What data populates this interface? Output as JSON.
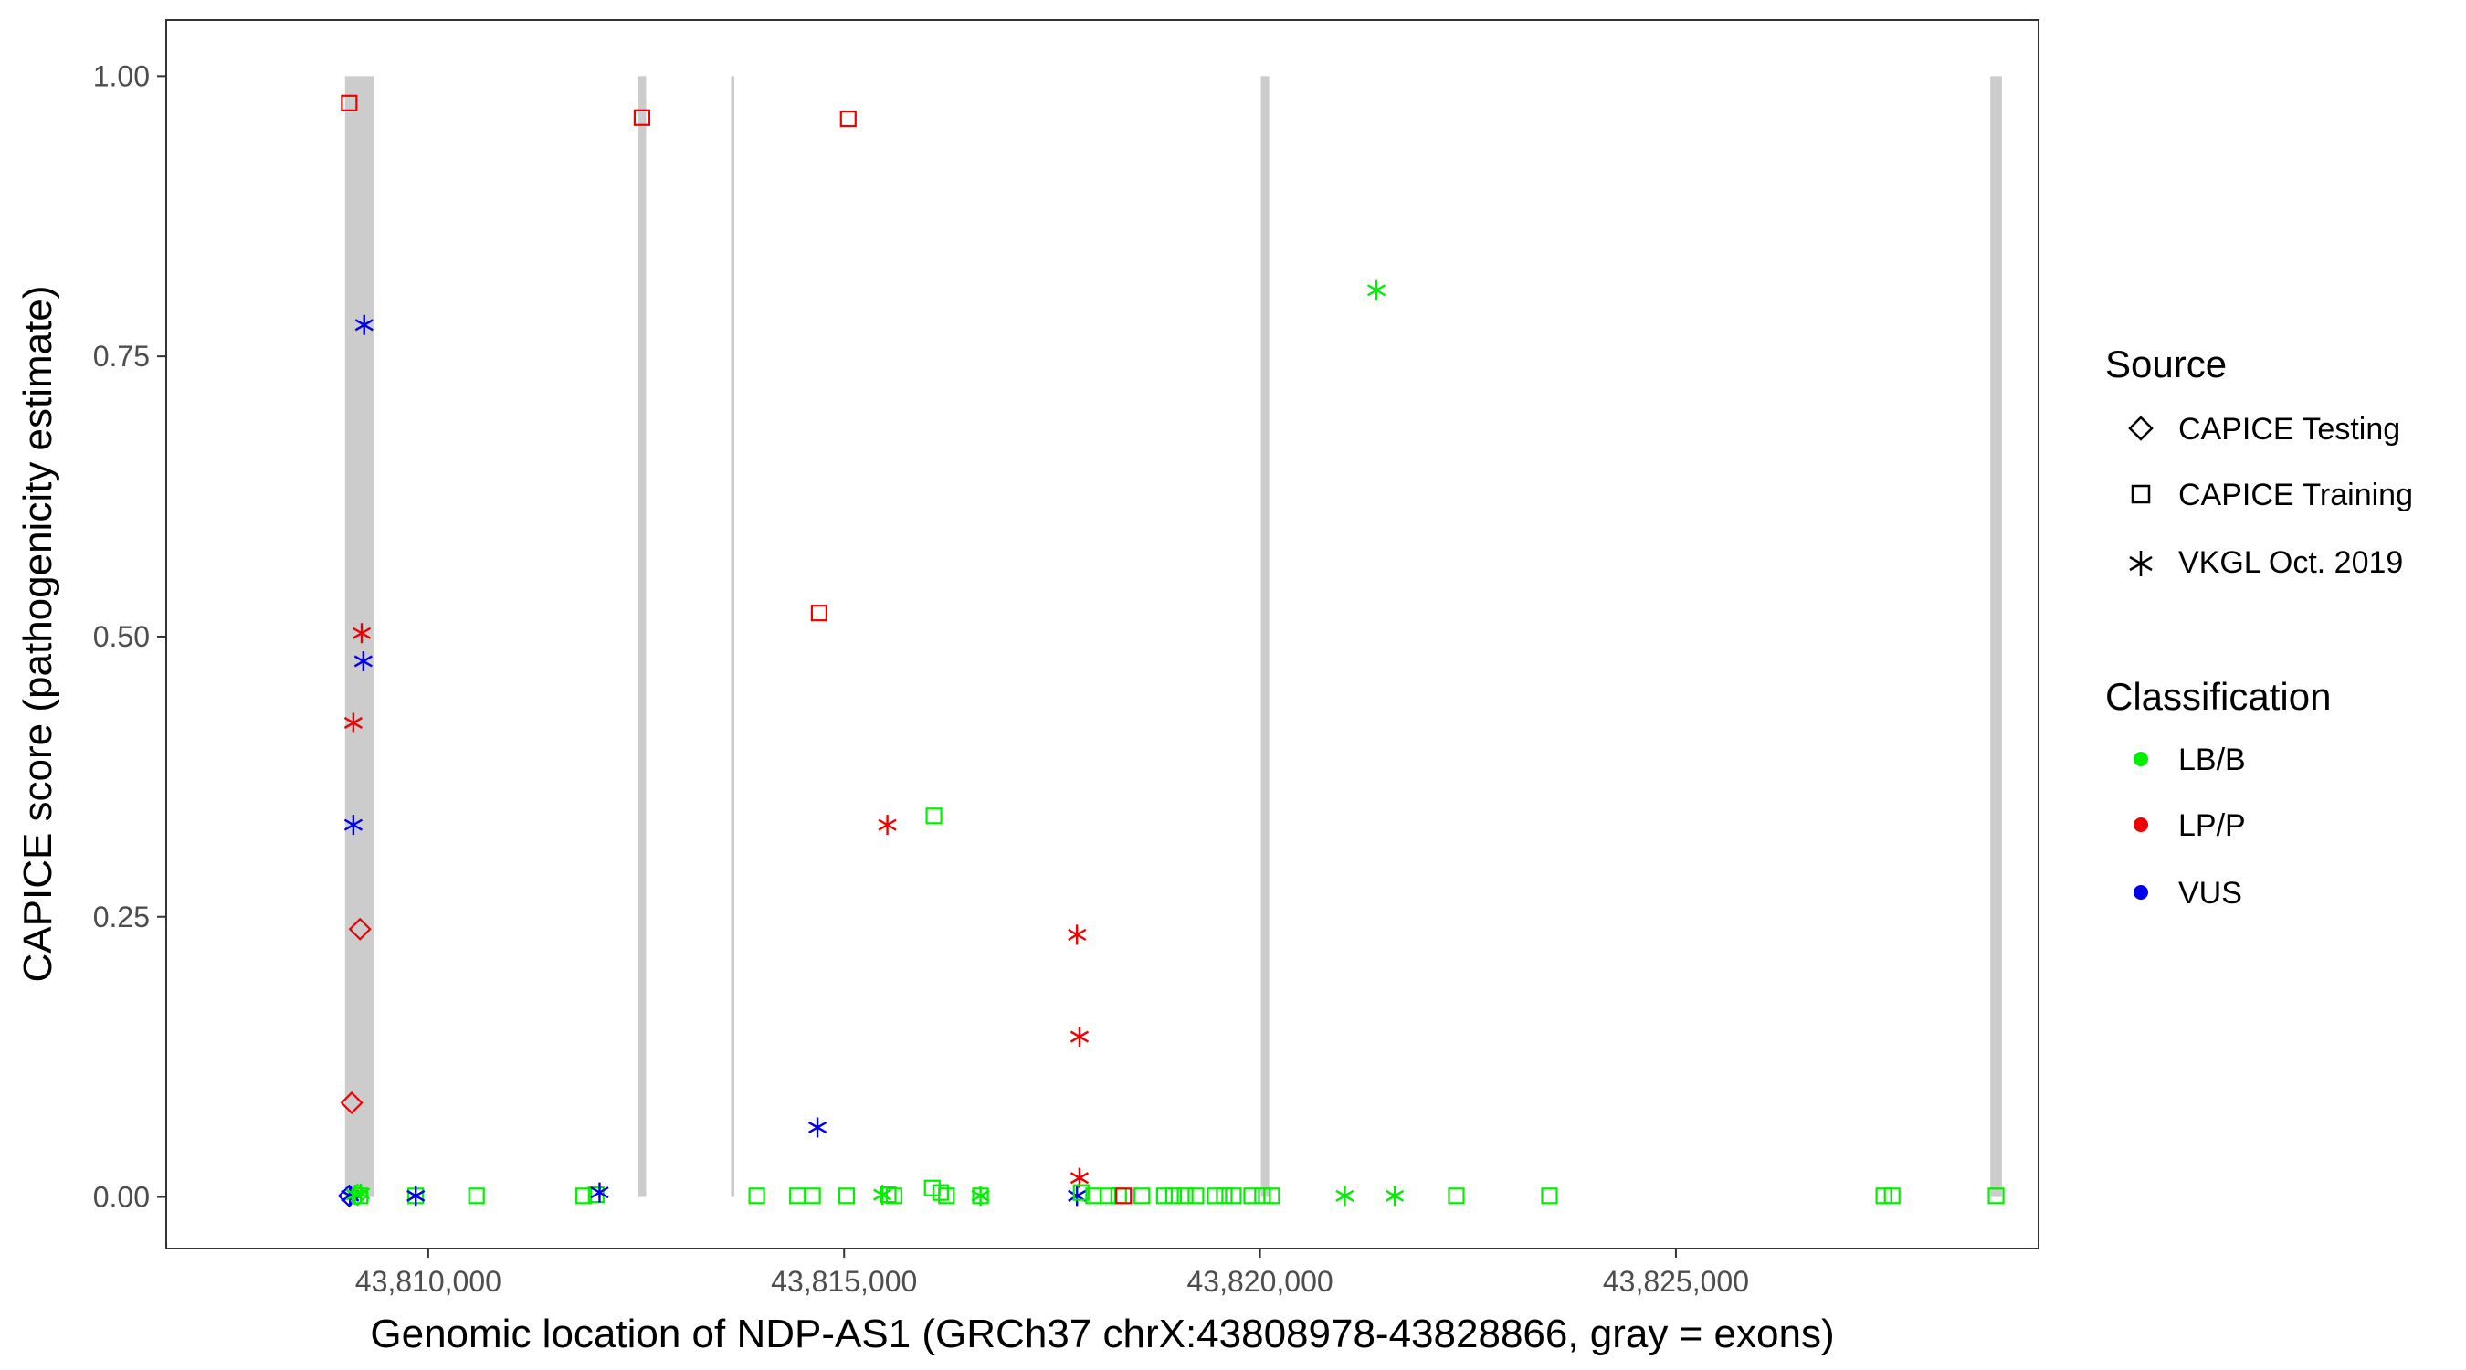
{
  "chart_data": {
    "type": "scatter",
    "xlabel": "Genomic location of NDP-AS1 (GRCh37 chrX:43808978-43828866, gray = exons)",
    "ylabel": "CAPICE score (pathogenicity estimate)",
    "xlim": [
      43806850,
      43829360
    ],
    "ylim": [
      -0.046,
      1.05
    ],
    "x_ticks": [
      43810000,
      43815000,
      43820000,
      43825000
    ],
    "x_tick_labels": [
      "43,810,000",
      "43,815,000",
      "43,820,000",
      "43,825,000"
    ],
    "y_ticks": [
      0,
      0.25,
      0.5,
      0.75,
      1.0
    ],
    "y_tick_labels": [
      "0.00",
      "0.25",
      "0.50",
      "0.75",
      "1.00"
    ],
    "grid": false,
    "exons": [
      {
        "start": 43809000,
        "end": 43809350
      },
      {
        "start": 43812520,
        "end": 43812620
      },
      {
        "start": 43813640,
        "end": 43813680
      },
      {
        "start": 43820010,
        "end": 43820110
      },
      {
        "start": 43828780,
        "end": 43828920
      }
    ],
    "legend_placement": "right",
    "legend": {
      "source": {
        "title": "Source",
        "items": [
          {
            "label": "CAPICE Testing",
            "shape": "diamond"
          },
          {
            "label": "CAPICE Training",
            "shape": "square"
          },
          {
            "label": "VKGL Oct. 2019",
            "shape": "star"
          }
        ]
      },
      "classification": {
        "title": "Classification",
        "items": [
          {
            "label": "LB/B",
            "color": "#00ee00"
          },
          {
            "label": "LP/P",
            "color": "#ee0000"
          },
          {
            "label": "VUS",
            "color": "#0000ee"
          }
        ]
      }
    },
    "colors": {
      "LB/B": "#00ee00",
      "LP/P": "#ee0000",
      "VUS": "#0000ee",
      "exon": "#cccccc"
    },
    "points": [
      {
        "x": 43809050,
        "y": 0.976,
        "source": "CAPICE Training",
        "class": "LP/P"
      },
      {
        "x": 43812570,
        "y": 0.963,
        "source": "CAPICE Training",
        "class": "LP/P"
      },
      {
        "x": 43815050,
        "y": 0.962,
        "source": "CAPICE Training",
        "class": "LP/P"
      },
      {
        "x": 43814700,
        "y": 0.521,
        "source": "CAPICE Training",
        "class": "LP/P"
      },
      {
        "x": 43809230,
        "y": 0.778,
        "source": "VKGL Oct. 2019",
        "class": "VUS"
      },
      {
        "x": 43809200,
        "y": 0.503,
        "source": "VKGL Oct. 2019",
        "class": "LP/P"
      },
      {
        "x": 43809220,
        "y": 0.478,
        "source": "VKGL Oct. 2019",
        "class": "VUS"
      },
      {
        "x": 43809100,
        "y": 0.423,
        "source": "VKGL Oct. 2019",
        "class": "LP/P"
      },
      {
        "x": 43809100,
        "y": 0.332,
        "source": "VKGL Oct. 2019",
        "class": "VUS"
      },
      {
        "x": 43809180,
        "y": 0.239,
        "source": "CAPICE Testing",
        "class": "LP/P"
      },
      {
        "x": 43809080,
        "y": 0.084,
        "source": "CAPICE Testing",
        "class": "LP/P"
      },
      {
        "x": 43815520,
        "y": 0.332,
        "source": "VKGL Oct. 2019",
        "class": "LP/P"
      },
      {
        "x": 43816080,
        "y": 0.34,
        "source": "CAPICE Training",
        "class": "LB/B"
      },
      {
        "x": 43821400,
        "y": 0.809,
        "source": "VKGL Oct. 2019",
        "class": "LB/B"
      },
      {
        "x": 43817800,
        "y": 0.234,
        "source": "VKGL Oct. 2019",
        "class": "LP/P"
      },
      {
        "x": 43817830,
        "y": 0.143,
        "source": "VKGL Oct. 2019",
        "class": "LP/P"
      },
      {
        "x": 43814680,
        "y": 0.062,
        "source": "VKGL Oct. 2019",
        "class": "VUS"
      },
      {
        "x": 43817830,
        "y": 0.017,
        "source": "VKGL Oct. 2019",
        "class": "LP/P"
      },
      {
        "x": 43809050,
        "y": 0.001,
        "source": "CAPICE Testing",
        "class": "VUS"
      },
      {
        "x": 43809150,
        "y": 0.002,
        "source": "CAPICE Testing",
        "class": "LB/B"
      },
      {
        "x": 43809060,
        "y": 0.001,
        "source": "VKGL Oct. 2019",
        "class": "VUS"
      },
      {
        "x": 43809120,
        "y": 0.002,
        "source": "VKGL Oct. 2019",
        "class": "LB/B"
      },
      {
        "x": 43809190,
        "y": 0.003,
        "source": "VKGL Oct. 2019",
        "class": "LB/B"
      },
      {
        "x": 43809180,
        "y": 0.001,
        "source": "CAPICE Training",
        "class": "LB/B"
      },
      {
        "x": 43809850,
        "y": 0.001,
        "source": "CAPICE Training",
        "class": "LB/B"
      },
      {
        "x": 43809850,
        "y": 0.001,
        "source": "VKGL Oct. 2019",
        "class": "VUS"
      },
      {
        "x": 43810580,
        "y": 0.001,
        "source": "CAPICE Training",
        "class": "LB/B"
      },
      {
        "x": 43811870,
        "y": 0.001,
        "source": "CAPICE Training",
        "class": "LB/B"
      },
      {
        "x": 43812020,
        "y": 0.002,
        "source": "CAPICE Training",
        "class": "LB/B"
      },
      {
        "x": 43812060,
        "y": 0.004,
        "source": "VKGL Oct. 2019",
        "class": "VUS"
      },
      {
        "x": 43813950,
        "y": 0.001,
        "source": "CAPICE Training",
        "class": "LB/B"
      },
      {
        "x": 43814440,
        "y": 0.001,
        "source": "CAPICE Training",
        "class": "LB/B"
      },
      {
        "x": 43814620,
        "y": 0.001,
        "source": "CAPICE Training",
        "class": "LB/B"
      },
      {
        "x": 43815030,
        "y": 0.001,
        "source": "CAPICE Training",
        "class": "LB/B"
      },
      {
        "x": 43815530,
        "y": 0.002,
        "source": "CAPICE Training",
        "class": "LB/B"
      },
      {
        "x": 43815460,
        "y": 0.002,
        "source": "VKGL Oct. 2019",
        "class": "LB/B"
      },
      {
        "x": 43815600,
        "y": 0.001,
        "source": "CAPICE Training",
        "class": "LB/B"
      },
      {
        "x": 43816060,
        "y": 0.008,
        "source": "CAPICE Training",
        "class": "LB/B"
      },
      {
        "x": 43816160,
        "y": 0.004,
        "source": "CAPICE Training",
        "class": "LB/B"
      },
      {
        "x": 43816230,
        "y": 0.001,
        "source": "CAPICE Training",
        "class": "LB/B"
      },
      {
        "x": 43816640,
        "y": 0.001,
        "source": "CAPICE Training",
        "class": "LB/B"
      },
      {
        "x": 43816640,
        "y": 0.001,
        "source": "VKGL Oct. 2019",
        "class": "LB/B"
      },
      {
        "x": 43817800,
        "y": 0.001,
        "source": "VKGL Oct. 2019",
        "class": "VUS"
      },
      {
        "x": 43817850,
        "y": 0.004,
        "source": "CAPICE Training",
        "class": "LB/B"
      },
      {
        "x": 43818000,
        "y": 0.001,
        "source": "CAPICE Training",
        "class": "LB/B"
      },
      {
        "x": 43818170,
        "y": 0.001,
        "source": "CAPICE Training",
        "class": "LB/B"
      },
      {
        "x": 43818300,
        "y": 0.001,
        "source": "CAPICE Training",
        "class": "LB/B"
      },
      {
        "x": 43818360,
        "y": 0.001,
        "source": "CAPICE Training",
        "class": "LP/P"
      },
      {
        "x": 43818580,
        "y": 0.001,
        "source": "CAPICE Training",
        "class": "LB/B"
      },
      {
        "x": 43818850,
        "y": 0.001,
        "source": "CAPICE Training",
        "class": "LB/B"
      },
      {
        "x": 43818960,
        "y": 0.001,
        "source": "CAPICE Training",
        "class": "LB/B"
      },
      {
        "x": 43819100,
        "y": 0.001,
        "source": "CAPICE Training",
        "class": "LB/B"
      },
      {
        "x": 43819230,
        "y": 0.001,
        "source": "CAPICE Training",
        "class": "LB/B"
      },
      {
        "x": 43819460,
        "y": 0.001,
        "source": "CAPICE Training",
        "class": "LB/B"
      },
      {
        "x": 43819570,
        "y": 0.001,
        "source": "CAPICE Training",
        "class": "LB/B"
      },
      {
        "x": 43819680,
        "y": 0.001,
        "source": "CAPICE Training",
        "class": "LB/B"
      },
      {
        "x": 43819900,
        "y": 0.001,
        "source": "CAPICE Training",
        "class": "LB/B"
      },
      {
        "x": 43820030,
        "y": 0.001,
        "source": "CAPICE Training",
        "class": "LB/B"
      },
      {
        "x": 43820140,
        "y": 0.001,
        "source": "CAPICE Training",
        "class": "LB/B"
      },
      {
        "x": 43821020,
        "y": 0.001,
        "source": "VKGL Oct. 2019",
        "class": "LB/B"
      },
      {
        "x": 43821620,
        "y": 0.001,
        "source": "VKGL Oct. 2019",
        "class": "LB/B"
      },
      {
        "x": 43822360,
        "y": 0.001,
        "source": "CAPICE Training",
        "class": "LB/B"
      },
      {
        "x": 43823480,
        "y": 0.001,
        "source": "CAPICE Training",
        "class": "LB/B"
      },
      {
        "x": 43827500,
        "y": 0.001,
        "source": "CAPICE Training",
        "class": "LB/B"
      },
      {
        "x": 43827600,
        "y": 0.001,
        "source": "CAPICE Training",
        "class": "LB/B"
      },
      {
        "x": 43828850,
        "y": 0.001,
        "source": "CAPICE Training",
        "class": "LB/B"
      }
    ]
  }
}
